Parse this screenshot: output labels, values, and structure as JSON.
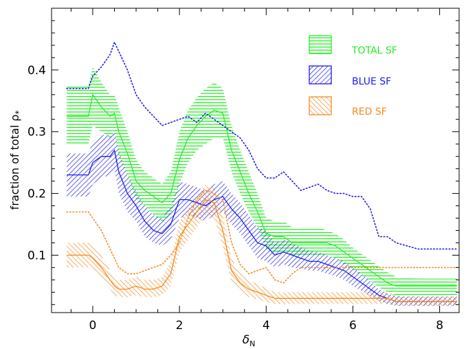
{
  "chart_data": {
    "type": "line",
    "xlabel": "δ",
    "xlabel_sub": "N",
    "ylabel": "fraction of total ρ",
    "ylabel_sub": "*",
    "xlim": [
      -0.95,
      8.45
    ],
    "ylim": [
      0.007,
      0.5
    ],
    "xticks": [
      0,
      2,
      4,
      6,
      8
    ],
    "yticks": [
      0.1,
      0.2,
      0.3,
      0.4
    ],
    "xtick_labels": [
      "0",
      "2",
      "4",
      "6",
      "8"
    ],
    "ytick_labels": [
      "0.1",
      "0.2",
      "0.3",
      "0.4"
    ],
    "legend_position": "top-right",
    "legend": [
      {
        "label": "TOTAL SF",
        "color": "#22ee22",
        "hatch": "horizontal"
      },
      {
        "label": "BLUE SF",
        "color": "#1a1aee",
        "hatch": "diagonal-back"
      },
      {
        "label": "RED SF",
        "color": "#f58a1f",
        "hatch": "diagonal"
      }
    ],
    "x": [
      -0.6,
      -0.1,
      0.0,
      0.2,
      0.4,
      0.5,
      0.6,
      0.8,
      1.0,
      1.2,
      1.4,
      1.6,
      1.8,
      2.0,
      2.2,
      2.4,
      2.6,
      2.8,
      3.0,
      3.2,
      3.4,
      3.6,
      3.8,
      4.0,
      4.2,
      4.4,
      4.6,
      4.8,
      5.0,
      5.2,
      5.4,
      5.6,
      5.8,
      6.0,
      6.2,
      6.4,
      6.6,
      6.8,
      7.0,
      7.2,
      7.5,
      8.0,
      8.4
    ],
    "series": [
      {
        "name": "TOTAL SF",
        "color": "#22ee22",
        "hatch": "horizontal",
        "values": [
          0.325,
          0.325,
          0.36,
          0.34,
          0.325,
          0.33,
          0.3,
          0.265,
          0.22,
          0.205,
          0.195,
          0.185,
          0.2,
          0.255,
          0.29,
          0.31,
          0.325,
          0.335,
          0.33,
          0.27,
          0.235,
          0.2,
          0.17,
          0.135,
          0.13,
          0.13,
          0.12,
          0.12,
          0.12,
          0.12,
          0.12,
          0.115,
          0.105,
          0.095,
          0.085,
          0.075,
          0.065,
          0.055,
          0.05,
          0.05,
          0.05,
          0.05,
          0.05
        ],
        "lower": [
          0.28,
          0.28,
          0.31,
          0.3,
          0.29,
          0.3,
          0.26,
          0.23,
          0.19,
          0.18,
          0.165,
          0.155,
          0.165,
          0.215,
          0.25,
          0.27,
          0.28,
          0.29,
          0.29,
          0.235,
          0.2,
          0.17,
          0.145,
          0.11,
          0.105,
          0.105,
          0.1,
          0.1,
          0.1,
          0.1,
          0.1,
          0.095,
          0.085,
          0.077,
          0.067,
          0.058,
          0.048,
          0.04,
          0.035,
          0.035,
          0.035,
          0.035,
          0.035
        ],
        "upper": [
          0.375,
          0.375,
          0.405,
          0.38,
          0.36,
          0.36,
          0.34,
          0.3,
          0.255,
          0.235,
          0.225,
          0.215,
          0.235,
          0.3,
          0.335,
          0.355,
          0.37,
          0.38,
          0.37,
          0.31,
          0.27,
          0.235,
          0.2,
          0.16,
          0.155,
          0.155,
          0.145,
          0.145,
          0.145,
          0.145,
          0.14,
          0.135,
          0.125,
          0.112,
          0.102,
          0.092,
          0.082,
          0.072,
          0.065,
          0.063,
          0.062,
          0.062,
          0.062
        ]
      },
      {
        "name": "BLUE SF",
        "color": "#1a1aee",
        "hatch": "diagonal-back",
        "values": [
          0.23,
          0.23,
          0.25,
          0.26,
          0.26,
          0.27,
          0.235,
          0.2,
          0.18,
          0.155,
          0.14,
          0.135,
          0.15,
          0.19,
          0.19,
          0.185,
          0.18,
          0.19,
          0.195,
          0.175,
          0.16,
          0.14,
          0.12,
          0.115,
          0.1,
          0.105,
          0.1,
          0.095,
          0.09,
          0.09,
          0.085,
          0.08,
          0.075,
          0.065,
          0.055,
          0.045,
          0.035,
          0.03,
          0.025,
          0.025,
          0.025,
          0.025,
          0.025
        ],
        "lower": [
          0.195,
          0.195,
          0.215,
          0.225,
          0.23,
          0.24,
          0.2,
          0.17,
          0.155,
          0.13,
          0.12,
          0.115,
          0.125,
          0.16,
          0.165,
          0.16,
          0.155,
          0.165,
          0.17,
          0.15,
          0.135,
          0.115,
          0.095,
          0.09,
          0.08,
          0.085,
          0.08,
          0.078,
          0.075,
          0.075,
          0.07,
          0.066,
          0.06,
          0.05,
          0.042,
          0.034,
          0.026,
          0.021,
          0.018,
          0.018,
          0.018,
          0.018,
          0.018
        ],
        "upper": [
          0.265,
          0.265,
          0.285,
          0.295,
          0.295,
          0.3,
          0.27,
          0.23,
          0.205,
          0.18,
          0.165,
          0.16,
          0.18,
          0.22,
          0.215,
          0.21,
          0.205,
          0.215,
          0.22,
          0.2,
          0.185,
          0.165,
          0.145,
          0.14,
          0.12,
          0.125,
          0.12,
          0.113,
          0.107,
          0.105,
          0.1,
          0.095,
          0.09,
          0.08,
          0.07,
          0.058,
          0.045,
          0.038,
          0.034,
          0.033,
          0.033,
          0.033,
          0.033
        ]
      },
      {
        "name": "RED SF",
        "color": "#f58a1f",
        "hatch": "diagonal",
        "values": [
          0.1,
          0.1,
          0.095,
          0.08,
          0.06,
          0.05,
          0.045,
          0.045,
          0.05,
          0.045,
          0.045,
          0.05,
          0.07,
          0.13,
          0.15,
          0.17,
          0.19,
          0.185,
          0.14,
          0.075,
          0.055,
          0.045,
          0.04,
          0.035,
          0.03,
          0.03,
          0.03,
          0.03,
          0.03,
          0.03,
          0.03,
          0.03,
          0.03,
          0.03,
          0.03,
          0.03,
          0.03,
          0.03,
          0.025,
          0.025,
          0.025,
          0.025,
          0.025
        ],
        "lower": [
          0.08,
          0.08,
          0.075,
          0.06,
          0.045,
          0.035,
          0.032,
          0.032,
          0.035,
          0.032,
          0.032,
          0.035,
          0.05,
          0.105,
          0.125,
          0.145,
          0.165,
          0.16,
          0.115,
          0.055,
          0.04,
          0.032,
          0.028,
          0.024,
          0.021,
          0.021,
          0.021,
          0.021,
          0.021,
          0.021,
          0.021,
          0.021,
          0.021,
          0.021,
          0.021,
          0.021,
          0.021,
          0.021,
          0.018,
          0.018,
          0.018,
          0.018,
          0.018
        ],
        "upper": [
          0.12,
          0.12,
          0.115,
          0.1,
          0.075,
          0.065,
          0.06,
          0.06,
          0.065,
          0.06,
          0.06,
          0.065,
          0.09,
          0.155,
          0.175,
          0.195,
          0.215,
          0.21,
          0.165,
          0.095,
          0.072,
          0.06,
          0.053,
          0.047,
          0.04,
          0.04,
          0.04,
          0.04,
          0.04,
          0.04,
          0.04,
          0.04,
          0.04,
          0.04,
          0.04,
          0.04,
          0.04,
          0.04,
          0.034,
          0.033,
          0.033,
          0.033,
          0.033
        ]
      }
    ],
    "dotted_series": [
      {
        "name": "BLUE SF",
        "color": "#1a1aee",
        "x": [
          -0.6,
          -0.1,
          0.0,
          0.2,
          0.4,
          0.5,
          0.6,
          0.8,
          1.0,
          1.2,
          1.4,
          1.6,
          1.8,
          2.0,
          2.2,
          2.4,
          2.6,
          2.8,
          3.0,
          3.2,
          3.4,
          3.6,
          3.8,
          4.0,
          4.2,
          4.4,
          4.6,
          4.8,
          5.0,
          5.2,
          5.4,
          5.6,
          5.8,
          6.0,
          6.2,
          6.4,
          6.6,
          6.8,
          7.0,
          7.5,
          8.0,
          8.4
        ],
        "values": [
          0.37,
          0.37,
          0.39,
          0.405,
          0.425,
          0.445,
          0.43,
          0.4,
          0.36,
          0.34,
          0.325,
          0.31,
          0.315,
          0.32,
          0.325,
          0.315,
          0.33,
          0.32,
          0.31,
          0.3,
          0.29,
          0.27,
          0.24,
          0.225,
          0.225,
          0.235,
          0.22,
          0.205,
          0.21,
          0.215,
          0.205,
          0.2,
          0.2,
          0.195,
          0.195,
          0.175,
          0.13,
          0.13,
          0.12,
          0.11,
          0.11,
          0.11
        ]
      },
      {
        "name": "RED SF",
        "color": "#f58a1f",
        "x": [
          -0.6,
          -0.1,
          0.0,
          0.2,
          0.4,
          0.6,
          0.8,
          1.0,
          1.2,
          1.4,
          1.6,
          1.8,
          2.0,
          2.2,
          2.4,
          2.6,
          2.8,
          3.0,
          3.2,
          3.4,
          3.6,
          3.8,
          4.0,
          4.2,
          4.4,
          4.6,
          4.8,
          5.0,
          5.5,
          6.0,
          6.5,
          7.0,
          7.5,
          8.0,
          8.4
        ],
        "values": [
          0.17,
          0.17,
          0.16,
          0.14,
          0.11,
          0.08,
          0.07,
          0.07,
          0.075,
          0.08,
          0.085,
          0.1,
          0.12,
          0.16,
          0.19,
          0.205,
          0.2,
          0.19,
          0.12,
          0.085,
          0.07,
          0.075,
          0.08,
          0.06,
          0.055,
          0.07,
          0.08,
          0.08,
          0.08,
          0.08,
          0.08,
          0.08,
          0.08,
          0.08,
          0.08
        ]
      }
    ]
  }
}
